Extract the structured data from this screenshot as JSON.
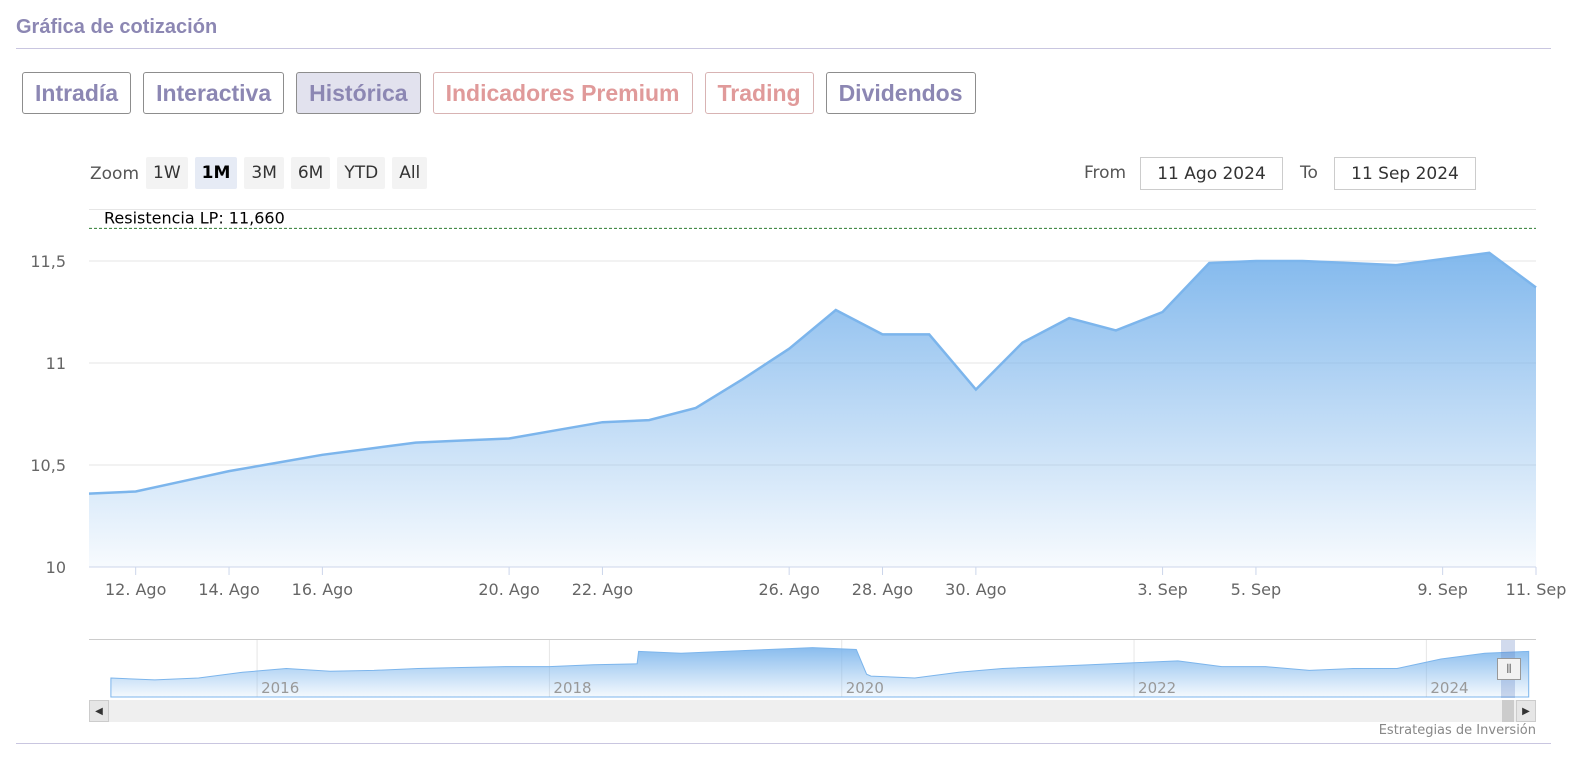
{
  "header": {
    "title": "Gráfica de cotización"
  },
  "tabs": [
    {
      "label": "Intradía",
      "active": false,
      "premium": false
    },
    {
      "label": "Interactiva",
      "active": false,
      "premium": false
    },
    {
      "label": "Histórica",
      "active": true,
      "premium": false
    },
    {
      "label": "Indicadores Premium",
      "active": false,
      "premium": true
    },
    {
      "label": "Trading",
      "active": false,
      "premium": true
    },
    {
      "label": "Dividendos",
      "active": false,
      "premium": false
    }
  ],
  "zoom": {
    "label": "Zoom",
    "buttons": [
      "1W",
      "1M",
      "3M",
      "6M",
      "YTD",
      "All"
    ],
    "active": "1M"
  },
  "range": {
    "from_label": "From",
    "from_value": "11 Ago 2024",
    "to_label": "To",
    "to_value": "11 Sep 2024"
  },
  "colors": {
    "accent": "#8c87b3",
    "premium": "#e09a9a",
    "series_line": "#7cb5ec",
    "resistance": "#2e7d32"
  },
  "chart_data": {
    "type": "area",
    "x": [
      "2024-08-11",
      "2024-08-12",
      "2024-08-13",
      "2024-08-14",
      "2024-08-15",
      "2024-08-16",
      "2024-08-17",
      "2024-08-18",
      "2024-08-19",
      "2024-08-20",
      "2024-08-21",
      "2024-08-22",
      "2024-08-23",
      "2024-08-24",
      "2024-08-25",
      "2024-08-26",
      "2024-08-27",
      "2024-08-28",
      "2024-08-29",
      "2024-08-30",
      "2024-08-31",
      "2024-09-01",
      "2024-09-02",
      "2024-09-03",
      "2024-09-04",
      "2024-09-05",
      "2024-09-06",
      "2024-09-07",
      "2024-09-08",
      "2024-09-09",
      "2024-09-10",
      "2024-09-11"
    ],
    "series": [
      {
        "values": [
          10.36,
          10.37,
          10.42,
          10.47,
          10.51,
          10.55,
          10.58,
          10.61,
          10.62,
          10.63,
          10.67,
          10.71,
          10.72,
          10.78,
          10.92,
          11.07,
          11.26,
          11.14,
          11.14,
          10.87,
          11.1,
          11.22,
          11.16,
          11.25,
          11.49,
          11.5,
          11.5,
          11.49,
          11.48,
          11.51,
          11.54,
          11.37
        ]
      }
    ],
    "ylim": [
      10,
      11.75
    ],
    "y_ticks": [
      "10",
      "10,5",
      "11",
      "11,5"
    ],
    "x_tick_labels": [
      {
        "date": "2024-08-12",
        "label": "12. Ago"
      },
      {
        "date": "2024-08-14",
        "label": "14. Ago"
      },
      {
        "date": "2024-08-16",
        "label": "16. Ago"
      },
      {
        "date": "2024-08-20",
        "label": "20. Ago"
      },
      {
        "date": "2024-08-22",
        "label": "22. Ago"
      },
      {
        "date": "2024-08-26",
        "label": "26. Ago"
      },
      {
        "date": "2024-08-28",
        "label": "28. Ago"
      },
      {
        "date": "2024-08-30",
        "label": "30. Ago"
      },
      {
        "date": "2024-09-03",
        "label": "3. Sep"
      },
      {
        "date": "2024-09-05",
        "label": "5. Sep"
      },
      {
        "date": "2024-09-09",
        "label": "9. Sep"
      },
      {
        "date": "2024-09-11",
        "label": "11. Sep"
      }
    ],
    "plot_lines": [
      {
        "label": "Resistencia LP: 11,660",
        "value": 11.66,
        "style": "dashed"
      }
    ],
    "grid": true,
    "legend": "none"
  },
  "navigator": {
    "type": "area",
    "x": [
      2015.0,
      2015.3,
      2015.6,
      2015.9,
      2016.2,
      2016.5,
      2016.8,
      2017.1,
      2017.4,
      2017.7,
      2018.0,
      2018.3,
      2018.6,
      2018.61,
      2018.9,
      2019.2,
      2019.5,
      2019.8,
      2020.1,
      2020.17,
      2020.2,
      2020.5,
      2020.8,
      2021.1,
      2021.4,
      2021.7,
      2022.0,
      2022.3,
      2022.6,
      2022.9,
      2023.2,
      2023.5,
      2023.8,
      2024.1,
      2024.4,
      2024.7
    ],
    "values": [
      1.0,
      0.9,
      1.0,
      1.3,
      1.5,
      1.35,
      1.4,
      1.5,
      1.55,
      1.6,
      1.6,
      1.7,
      1.75,
      2.4,
      2.3,
      2.4,
      2.5,
      2.6,
      2.5,
      1.2,
      1.1,
      1.0,
      1.3,
      1.5,
      1.6,
      1.7,
      1.8,
      1.9,
      1.6,
      1.6,
      1.4,
      1.5,
      1.5,
      2.0,
      2.3,
      2.4
    ],
    "year_labels": [
      "2016",
      "2018",
      "2020",
      "2022",
      "2024"
    ],
    "year_values": [
      2016,
      2018,
      2020,
      2022,
      2024
    ],
    "xlim": [
      2014.85,
      2024.75
    ],
    "ylim": [
      0,
      3
    ]
  },
  "credits": "Estrategias de Inversión"
}
